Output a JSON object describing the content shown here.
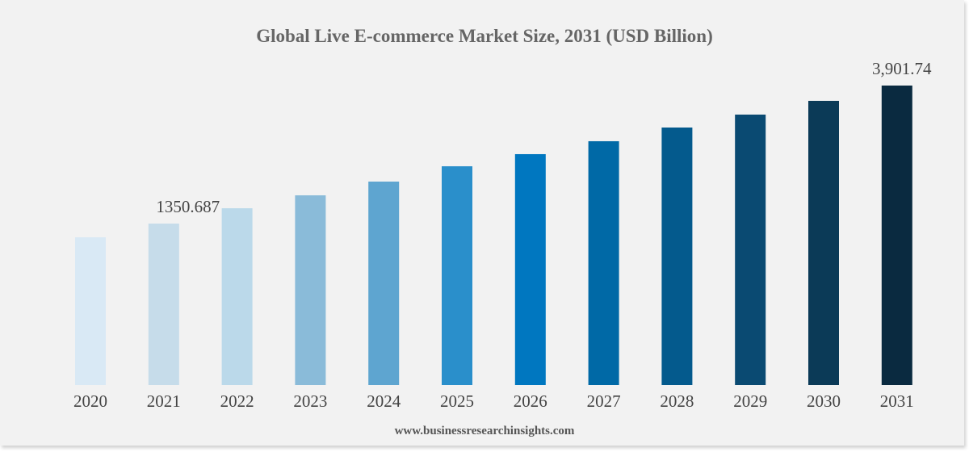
{
  "chart_data": {
    "type": "bar",
    "title": "Global Live E-commerce Market Size, 2031 (USD Billion)",
    "xlabel": "",
    "ylabel": "",
    "categories": [
      "2020",
      "2021",
      "2022",
      "2023",
      "2024",
      "2025",
      "2026",
      "2027",
      "2028",
      "2029",
      "2030",
      "2031"
    ],
    "values": [
      1097,
      1350.687,
      1634,
      1873,
      2127,
      2410,
      2634,
      2873,
      3126,
      3365,
      3619,
      3901.74
    ],
    "data_labels": {
      "1": "1350.687",
      "11": "3,901.74"
    },
    "colors": [
      "#d9e9f5",
      "#c6dcea",
      "#bbd9ea",
      "#8abbd9",
      "#5ea5d0",
      "#2a8fcb",
      "#0077c0",
      "#0069a6",
      "#045a8d",
      "#0a4a72",
      "#0b3a57",
      "#0a2a40"
    ],
    "grid": false,
    "legend": "none",
    "background": "#f2f2f2"
  },
  "footer": "www.businessresearchinsights.com"
}
